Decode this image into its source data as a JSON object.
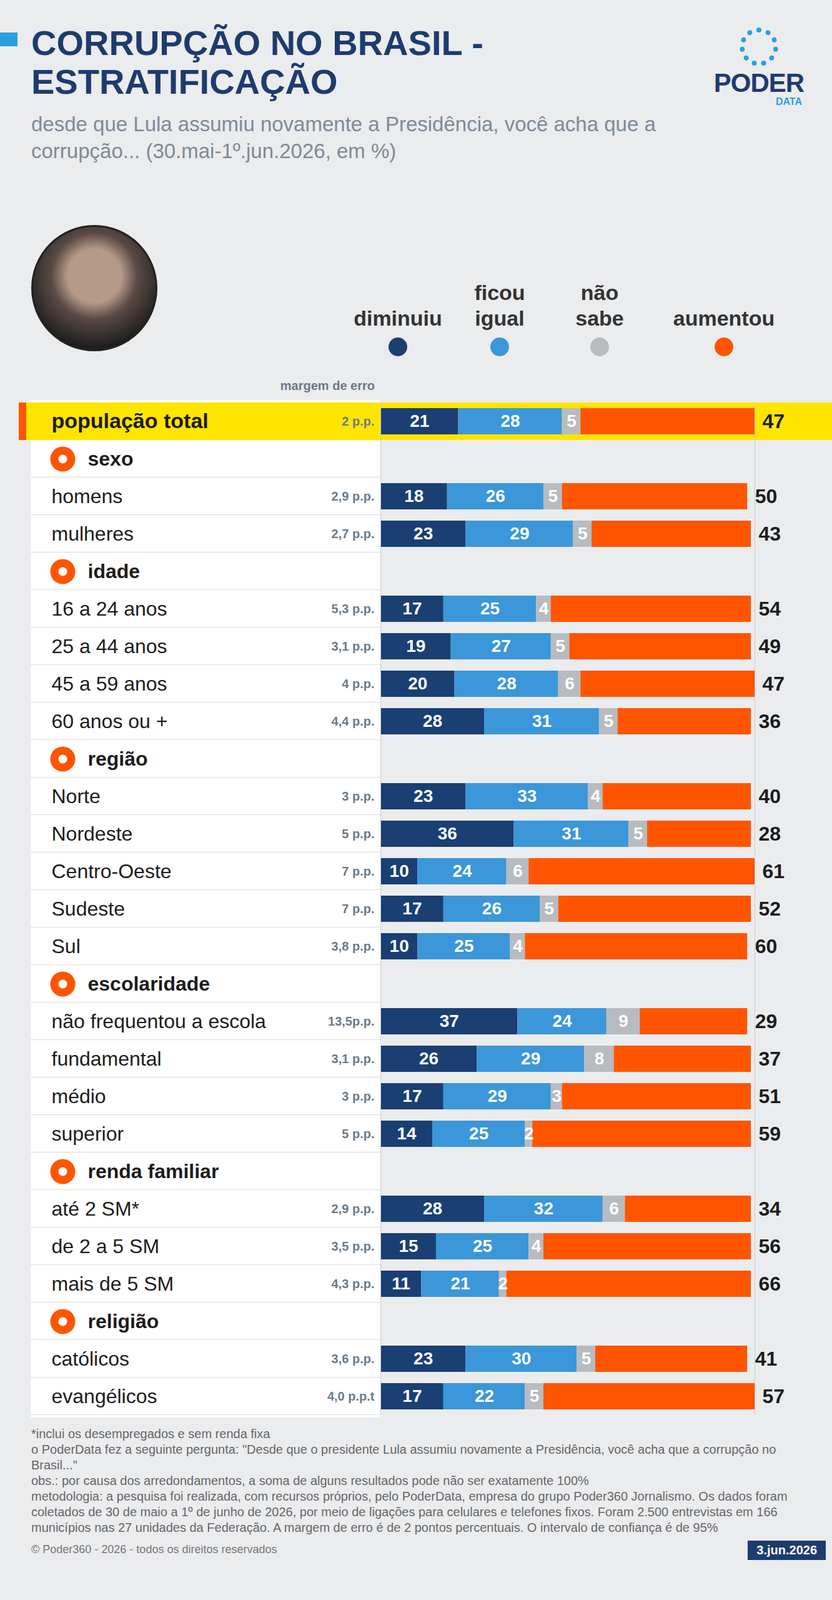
{
  "chart_data": {
    "type": "bar",
    "orientation": "horizontal",
    "stacked": true,
    "data_labels": true,
    "tick_labels": false,
    "title": "CORRUPÇÃO NO BRASIL - ESTRATIFICAÇÃO",
    "subtitle": "desde que Lula assumiu novamente a Presidência, você acha que a corrupção... (30.mai-1º.jun.2026, em %)",
    "xlim": [
      0,
      101
    ],
    "categories": [
      "população total",
      "homens",
      "mulheres",
      "16 a 24 anos",
      "25 a 44 anos",
      "45 a 59 anos",
      "60 anos ou +",
      "Norte",
      "Nordeste",
      "Centro-Oeste",
      "Sudeste",
      "Sul",
      "não frequentou a escola",
      "fundamental",
      "médio",
      "superior",
      "até 2 SM*",
      "de 2 a 5 SM",
      "mais de 5 SM",
      "católicos",
      "evangélicos"
    ],
    "groups": [
      {
        "name": "sexo",
        "categories": [
          "homens",
          "mulheres"
        ]
      },
      {
        "name": "idade",
        "categories": [
          "16 a 24 anos",
          "25 a 44 anos",
          "45 a 59 anos",
          "60 anos ou +"
        ]
      },
      {
        "name": "região",
        "categories": [
          "Norte",
          "Nordeste",
          "Centro-Oeste",
          "Sudeste",
          "Sul"
        ]
      },
      {
        "name": "escolaridade",
        "categories": [
          "não frequentou a escola",
          "fundamental",
          "médio",
          "superior"
        ]
      },
      {
        "name": "renda familiar",
        "categories": [
          "até 2 SM*",
          "de 2 a 5 SM",
          "mais de 5 SM"
        ]
      },
      {
        "name": "religião",
        "categories": [
          "católicos",
          "evangélicos"
        ]
      }
    ],
    "margin_of_error_label": "margem de erro",
    "margins_of_error": [
      "2 p.p.",
      "2,9 p.p.",
      "2,7 p.p.",
      "5,3 p.p.",
      "3,1 p.p.",
      "4 p.p.",
      "4,4 p.p.",
      "3 p.p.",
      "5 p.p.",
      "7 p.p.",
      "7 p.p.",
      "3,8 p.p.",
      "13,5p.p.",
      "3,1 p.p.",
      "3 p.p.",
      "5 p.p.",
      "2,9 p.p.",
      "3,5 p.p.",
      "4,3 p.p.",
      "3,6 p.p.",
      "4,0 p.p.t"
    ],
    "series": [
      {
        "name": "diminuiu",
        "color": "#1a3f73",
        "values": [
          21,
          18,
          23,
          17,
          19,
          20,
          28,
          23,
          36,
          10,
          17,
          10,
          37,
          26,
          17,
          14,
          28,
          15,
          11,
          23,
          17
        ]
      },
      {
        "name": "ficou igual",
        "color": "#3b97d9",
        "values": [
          28,
          26,
          29,
          25,
          27,
          28,
          31,
          33,
          31,
          24,
          26,
          25,
          24,
          29,
          29,
          25,
          32,
          25,
          21,
          30,
          22
        ]
      },
      {
        "name": "não sabe",
        "color": "#b8bcc0",
        "values": [
          5,
          5,
          5,
          4,
          5,
          6,
          5,
          4,
          5,
          6,
          5,
          4,
          9,
          8,
          3,
          2,
          6,
          4,
          2,
          5,
          5
        ]
      },
      {
        "name": "aumentou",
        "color": "#ff5500",
        "values": [
          47,
          50,
          43,
          54,
          49,
          47,
          36,
          40,
          28,
          61,
          52,
          60,
          29,
          37,
          51,
          59,
          34,
          56,
          66,
          41,
          57
        ]
      }
    ],
    "logo": {
      "name": "PODER",
      "sub": "DATA"
    },
    "notes": [
      "*inclui os desempregados e sem renda fixa",
      "o PoderData fez a seguinte pergunta: \"Desde que o presidente Lula assumiu novamente a Presidência, você acha que a corrupção no Brasil...\"",
      "obs.: por causa dos arredondamentos, a soma de alguns resultados pode não ser exatamente 100%",
      "metodologia: a pesquisa foi realizada, com recursos próprios, pelo PoderData, empresa do grupo Poder360 Jornalismo. Os dados foram coletados de 30 de maio a 1º de junho de 2026, por meio de ligações para celulares e telefones fixos. Foram 2.500 entrevistas em 166 municípios nas 27 unidades da Federação. A margem de erro é de 2 pontos percentuais. O intervalo de confiança é de 95%"
    ],
    "copyright": "© Poder360 - 2026 - todos os direitos reservados",
    "date": "3.jun.2026"
  }
}
